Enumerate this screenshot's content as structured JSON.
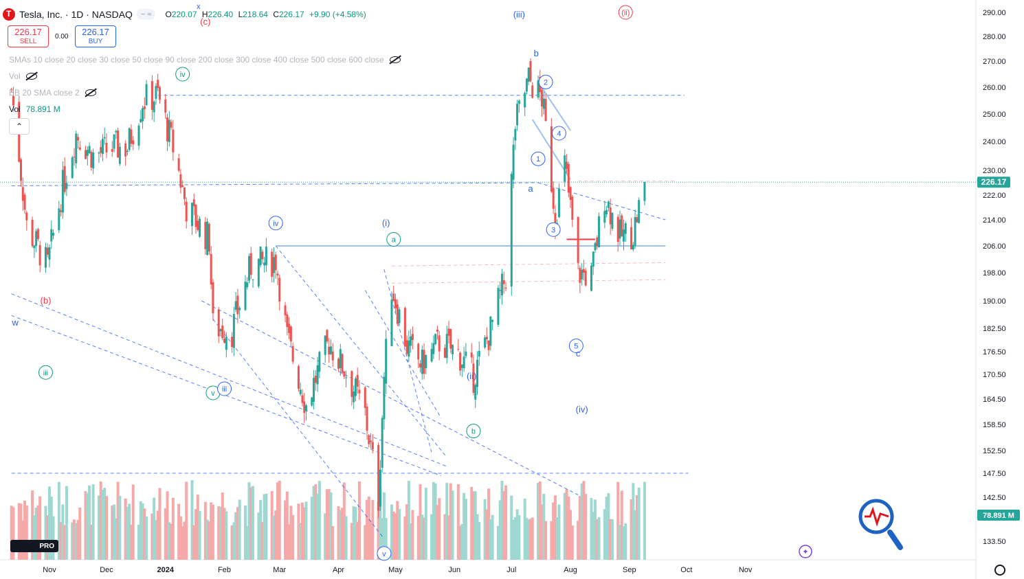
{
  "header": {
    "symbol": "Tesla, Inc. · 1D · NASDAQ",
    "pill": "− ≈",
    "ohlc": {
      "o_label": "O",
      "o": "220.07",
      "h_label": "H",
      "h": "226.40",
      "l_label": "L",
      "l": "218.64",
      "c_label": "C",
      "c": "226.17",
      "change": "+9.90 (+4.58%)"
    },
    "close_x": "x"
  },
  "trade": {
    "sell_price": "226.17",
    "sell_label": "SELL",
    "spread": "0.00",
    "buy_price": "226.17",
    "buy_label": "BUY"
  },
  "indicators": {
    "smas": "SMAs 10 close 20 close 30 close 50 close 90 close 200 close 300 close 400 close 500 close 600 close",
    "vol": "Vol",
    "bb": "BB 20 SMA close 2",
    "vol2_label": "Vol",
    "vol2_value": "78.891 M"
  },
  "branding": {
    "tv": "PRO"
  },
  "colors": {
    "up": "#26a69a",
    "down": "#ef5350",
    "vol_up": "#9ed8d1",
    "vol_down": "#f5a9a8",
    "wave_blue": "#2962ff",
    "wave_green": "#089981",
    "wave_red": "#f23645"
  },
  "chart_data": {
    "type": "candlestick",
    "title": "Tesla, Inc. · 1D · NASDAQ",
    "ylim": [
      128,
      292
    ],
    "y_ticks": [
      "290.00",
      "280.00",
      "270.00",
      "260.00",
      "250.00",
      "240.00",
      "230.00",
      "222.00",
      "214.00",
      "206.00",
      "198.00",
      "190.00",
      "182.50",
      "176.50",
      "170.50",
      "164.50",
      "158.50",
      "152.50",
      "147.50",
      "142.50",
      "133.50"
    ],
    "x_ticks": [
      {
        "label": "Nov",
        "date": "2023-11-01"
      },
      {
        "label": "Dec",
        "date": "2023-12-01"
      },
      {
        "label": "2024",
        "date": "2024-01-01"
      },
      {
        "label": "Feb",
        "date": "2024-02-01"
      },
      {
        "label": "Mar",
        "date": "2024-03-01"
      },
      {
        "label": "Apr",
        "date": "2024-04-01"
      },
      {
        "label": "May",
        "date": "2024-05-01"
      },
      {
        "label": "Jun",
        "date": "2024-06-01"
      },
      {
        "label": "Jul",
        "date": "2024-07-01"
      },
      {
        "label": "Aug",
        "date": "2024-08-01"
      },
      {
        "label": "Sep",
        "date": "2024-09-01"
      },
      {
        "label": "Oct",
        "date": "2024-10-01"
      },
      {
        "label": "Nov",
        "date": "2024-11-01"
      }
    ],
    "date_range": [
      "2023-10-12",
      "2024-09-09"
    ],
    "price_path": [
      {
        "date": "2023-10-12",
        "close": 259
      },
      {
        "date": "2023-10-20",
        "close": 212
      },
      {
        "date": "2023-10-31",
        "close": 200
      },
      {
        "date": "2023-11-07",
        "close": 222
      },
      {
        "date": "2023-11-15",
        "close": 243
      },
      {
        "date": "2023-11-24",
        "close": 235
      },
      {
        "date": "2023-12-05",
        "close": 238
      },
      {
        "date": "2023-12-12",
        "close": 238
      },
      {
        "date": "2023-12-20",
        "close": 255
      },
      {
        "date": "2023-12-28",
        "close": 257
      },
      {
        "date": "2024-01-05",
        "close": 238
      },
      {
        "date": "2024-01-12",
        "close": 218
      },
      {
        "date": "2024-01-24",
        "close": 208
      },
      {
        "date": "2024-01-26",
        "close": 183
      },
      {
        "date": "2024-02-05",
        "close": 182
      },
      {
        "date": "2024-02-15",
        "close": 200
      },
      {
        "date": "2024-02-28",
        "close": 202
      },
      {
        "date": "2024-03-05",
        "close": 180
      },
      {
        "date": "2024-03-15",
        "close": 163
      },
      {
        "date": "2024-03-27",
        "close": 179
      },
      {
        "date": "2024-04-05",
        "close": 171
      },
      {
        "date": "2024-04-15",
        "close": 161
      },
      {
        "date": "2024-04-22",
        "close": 142
      },
      {
        "date": "2024-04-25",
        "close": 170
      },
      {
        "date": "2024-04-29",
        "close": 194
      },
      {
        "date": "2024-05-07",
        "close": 178
      },
      {
        "date": "2024-05-15",
        "close": 173
      },
      {
        "date": "2024-05-24",
        "close": 179
      },
      {
        "date": "2024-06-03",
        "close": 176
      },
      {
        "date": "2024-06-11",
        "close": 170
      },
      {
        "date": "2024-06-20",
        "close": 182
      },
      {
        "date": "2024-06-28",
        "close": 197
      },
      {
        "date": "2024-07-03",
        "close": 246
      },
      {
        "date": "2024-07-10",
        "close": 263
      },
      {
        "date": "2024-07-17",
        "close": 256
      },
      {
        "date": "2024-07-24",
        "close": 215
      },
      {
        "date": "2024-07-29",
        "close": 232
      },
      {
        "date": "2024-08-05",
        "close": 198
      },
      {
        "date": "2024-08-12",
        "close": 197
      },
      {
        "date": "2024-08-19",
        "close": 222
      },
      {
        "date": "2024-08-27",
        "close": 209
      },
      {
        "date": "2024-09-03",
        "close": 210
      },
      {
        "date": "2024-09-09",
        "close": 226.17
      }
    ],
    "current_price": "226.17",
    "volume_label": "78.891 M",
    "annotations": [
      {
        "text": "(b)",
        "date": "2023-10-30",
        "price": 190,
        "color": "red"
      },
      {
        "text": "w",
        "date": "2023-10-14",
        "price": 184,
        "color": "blue"
      },
      {
        "text": "iii",
        "date": "2023-10-30",
        "price": 171,
        "color": "green",
        "circle": true
      },
      {
        "text": "iv",
        "date": "2024-01-10",
        "price": 265,
        "color": "green",
        "circle": true
      },
      {
        "text": "(c)",
        "date": "2024-01-22",
        "price": 286,
        "color": "red"
      },
      {
        "text": "v",
        "date": "2024-01-26",
        "price": 166,
        "color": "green",
        "circle": true
      },
      {
        "text": "iii",
        "date": "2024-02-01",
        "price": 167,
        "color": "blue",
        "circle": true
      },
      {
        "text": "iv",
        "date": "2024-02-28",
        "price": 213,
        "color": "blue",
        "circle": true
      },
      {
        "text": "(i)",
        "date": "2024-04-26",
        "price": 213,
        "color": "blue"
      },
      {
        "text": "a",
        "date": "2024-04-30",
        "price": 208,
        "color": "green",
        "circle": true
      },
      {
        "text": "v",
        "date": "2024-04-25",
        "price": 131,
        "color": "blue",
        "circle": true
      },
      {
        "text": "b",
        "date": "2024-06-11",
        "price": 157,
        "color": "green",
        "circle": true
      },
      {
        "text": "(ii)",
        "date": "2024-06-10",
        "price": 170,
        "color": "blue"
      },
      {
        "text": "(iii)",
        "date": "2024-07-05",
        "price": 289,
        "color": "blue"
      },
      {
        "text": "b",
        "date": "2024-07-14",
        "price": 273,
        "color": "blue"
      },
      {
        "text": "a",
        "date": "2024-07-11",
        "price": 224,
        "color": "blue"
      },
      {
        "text": "2",
        "date": "2024-07-19",
        "price": 262,
        "color": "blue",
        "circle": true
      },
      {
        "text": "1",
        "date": "2024-07-15",
        "price": 234,
        "color": "blue",
        "circle": true
      },
      {
        "text": "4",
        "date": "2024-07-26",
        "price": 243,
        "color": "blue",
        "circle": true
      },
      {
        "text": "3",
        "date": "2024-07-23",
        "price": 211,
        "color": "blue",
        "circle": true
      },
      {
        "text": "5",
        "date": "2024-08-04",
        "price": 178,
        "color": "blue",
        "circle": true
      },
      {
        "text": "c",
        "date": "2024-08-05",
        "price": 176,
        "color": "blue"
      },
      {
        "text": "(iv)",
        "date": "2024-08-07",
        "price": 162,
        "color": "blue"
      },
      {
        "text": "(ii)",
        "date": "2024-08-30",
        "price": 290,
        "color": "red",
        "circle": true
      }
    ],
    "legend": "none",
    "grid": false
  }
}
